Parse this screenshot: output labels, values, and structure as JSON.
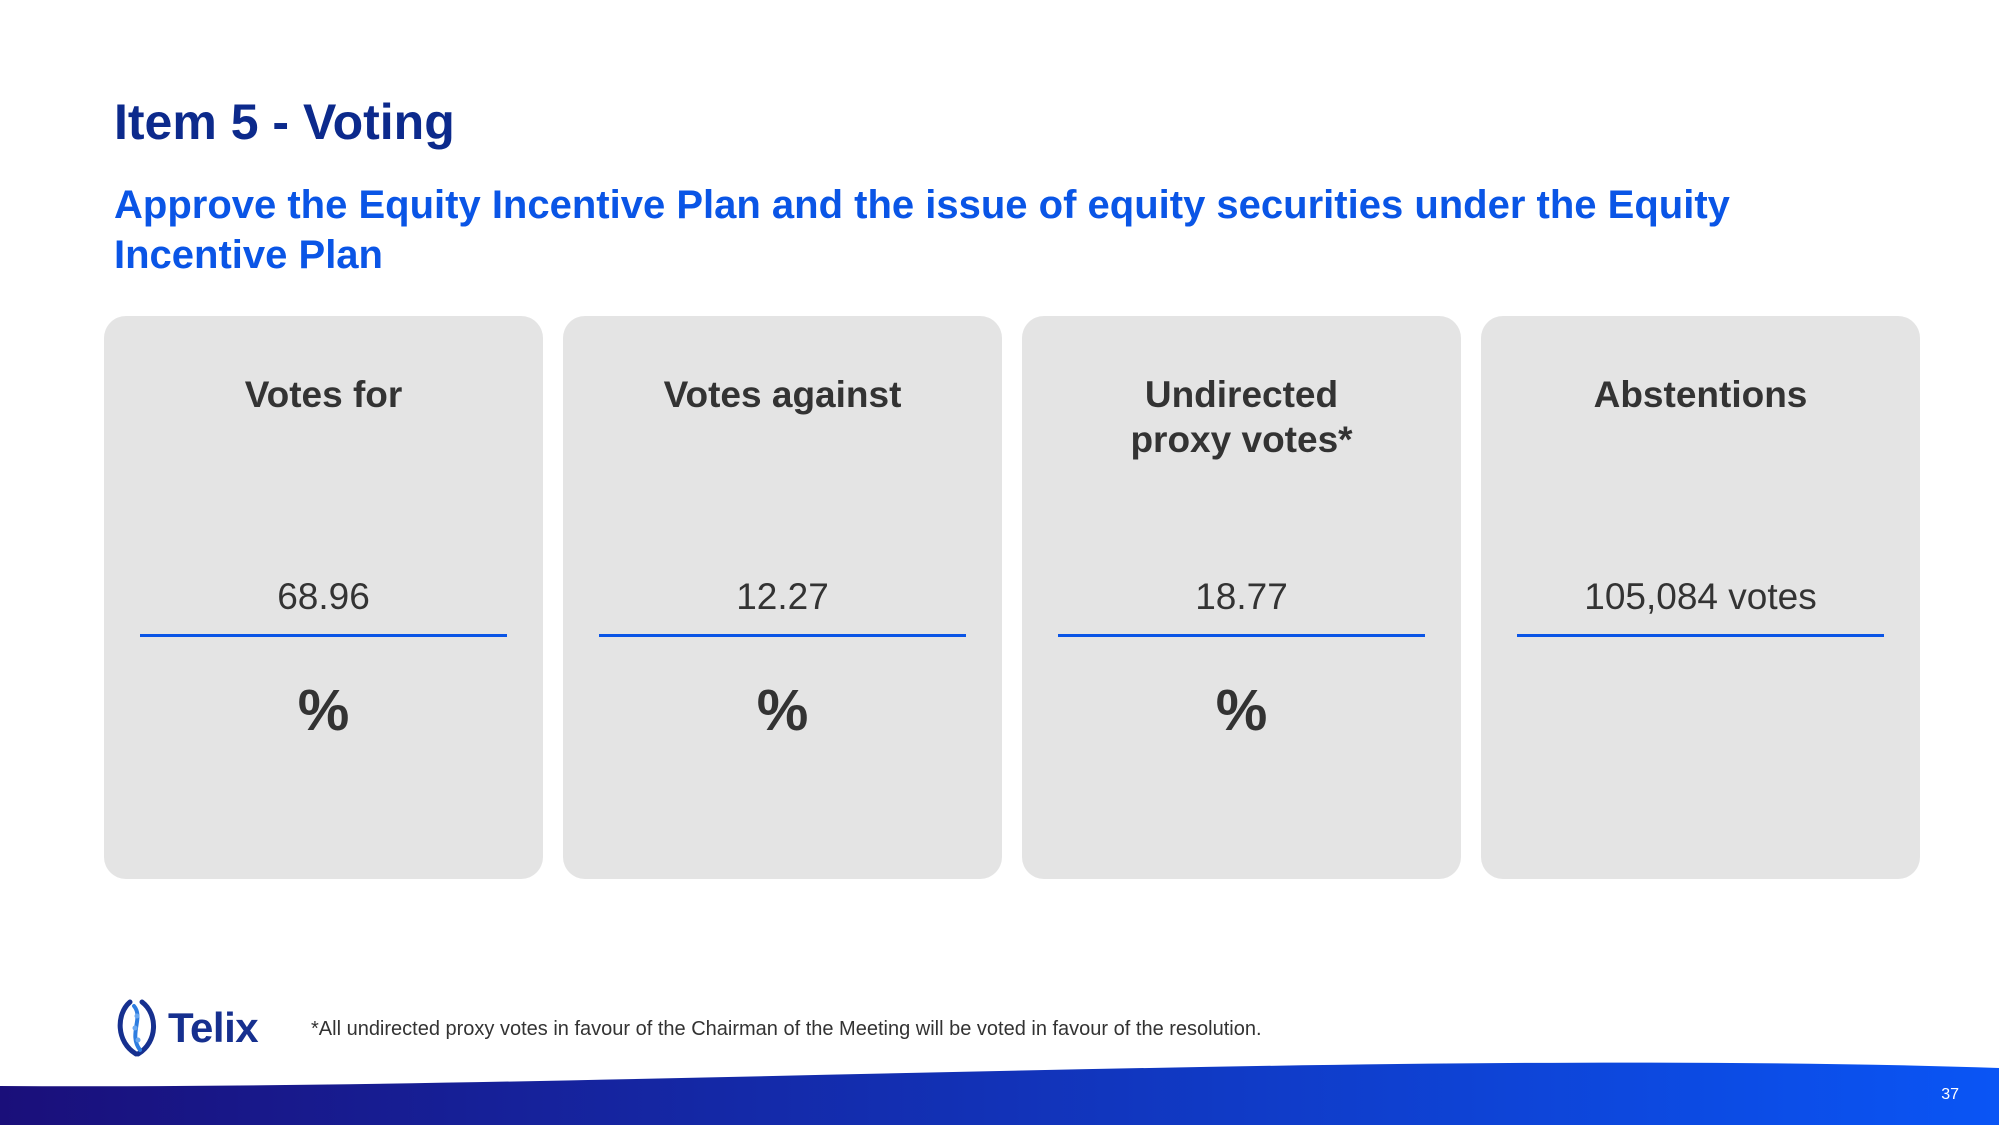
{
  "slide": {
    "title": "Item 5 - Voting",
    "subtitle": "Approve the Equity Incentive Plan and the issue of equity securities under the Equity Incentive Plan"
  },
  "cards": [
    {
      "label": "Votes for",
      "value": "68.96",
      "unit": "%"
    },
    {
      "label": "Votes against",
      "value": "12.27",
      "unit": "%"
    },
    {
      "label": "Undirected proxy votes*",
      "value": "18.77",
      "unit": "%"
    },
    {
      "label": "Abstentions",
      "value": "105,084 votes",
      "unit": ""
    }
  ],
  "footer": {
    "logo_text": "Telix",
    "footnote": "*All undirected proxy votes in favour of the Chairman of the Meeting will be voted in favour of the resolution.",
    "page_number": "37"
  },
  "colors": {
    "title": "#0c2a8c",
    "subtitle": "#0a55e6",
    "card_bg": "#e4e4e4",
    "accent_line": "#0a55e6",
    "wave_start": "#1a0f7a",
    "wave_end": "#0a55f5"
  }
}
